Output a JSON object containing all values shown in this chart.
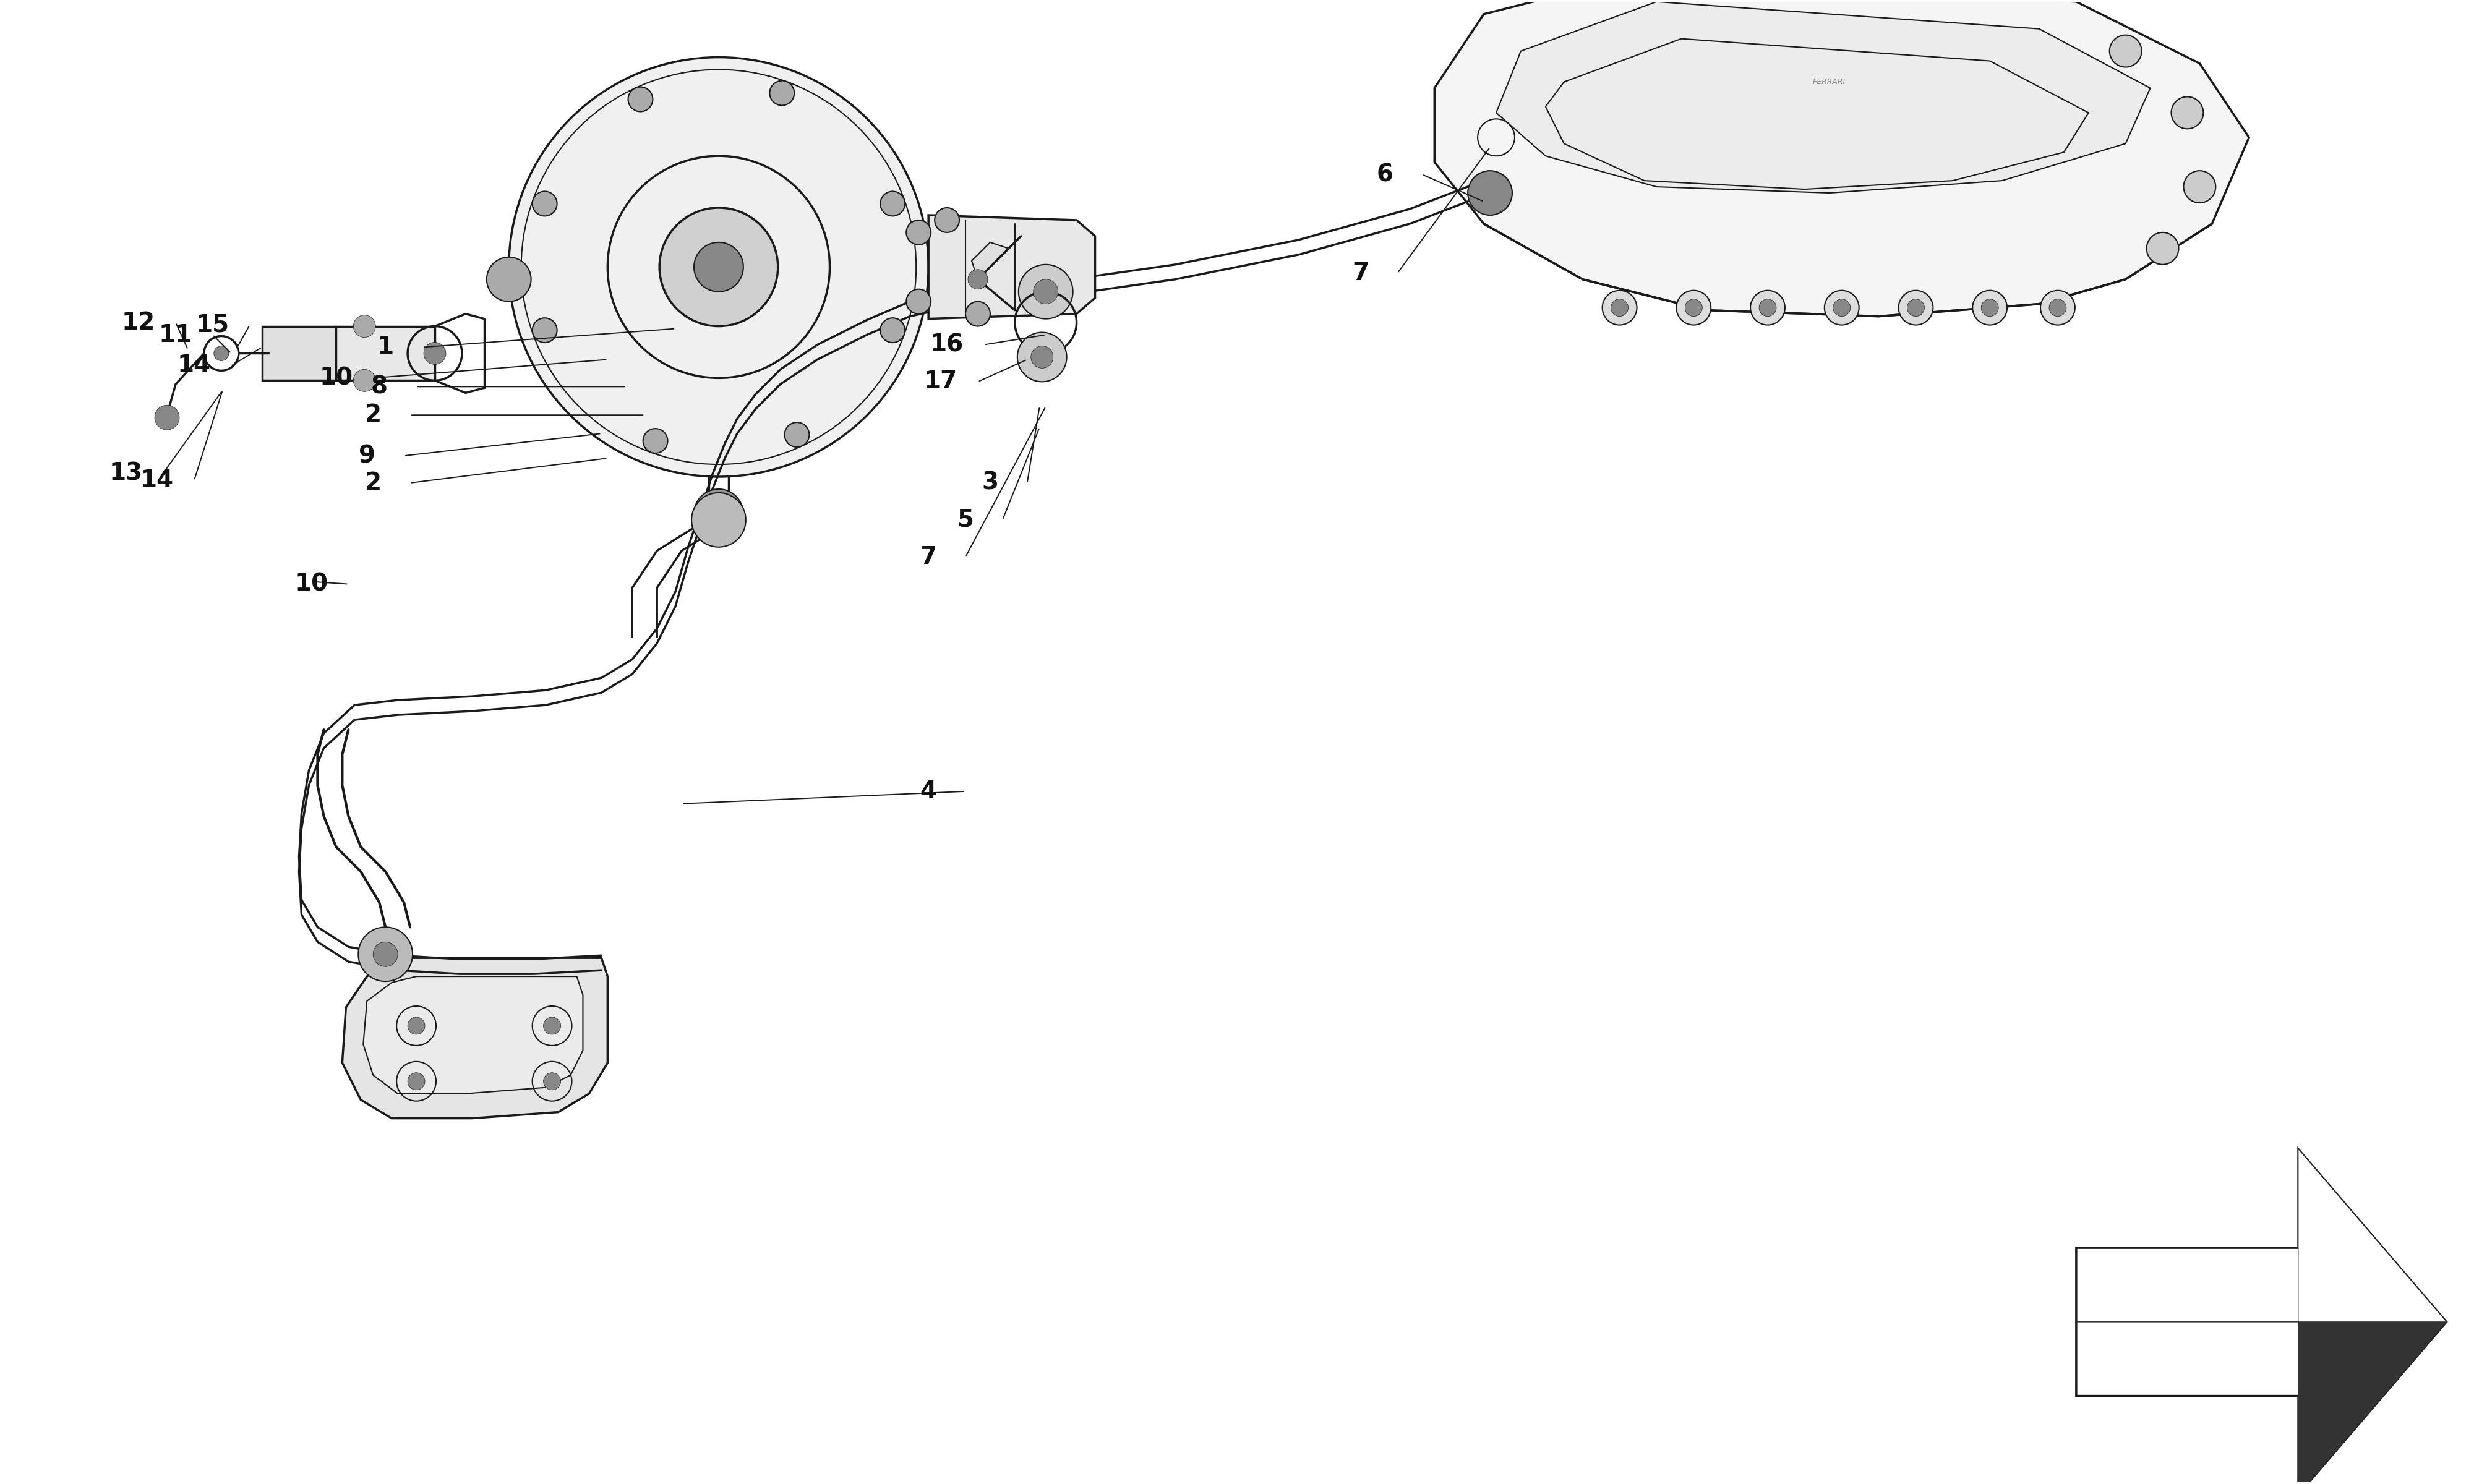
{
  "bg_color": "#ffffff",
  "line_color": "#1a1a1a",
  "line_width": 2.5,
  "fig_width": 40,
  "fig_height": 24,
  "leader_data": [
    [
      "1",
      3.1,
      9.2,
      5.45,
      9.35
    ],
    [
      "2",
      3.0,
      8.65,
      5.2,
      8.65
    ],
    [
      "2",
      3.0,
      8.1,
      4.9,
      8.3
    ],
    [
      "3",
      8.0,
      8.1,
      8.4,
      8.72
    ],
    [
      "4",
      7.5,
      5.6,
      5.5,
      5.5
    ],
    [
      "5",
      7.8,
      7.8,
      8.4,
      8.55
    ],
    [
      "6",
      11.2,
      10.6,
      12.0,
      10.38
    ],
    [
      "7",
      11.0,
      9.8,
      12.05,
      10.82
    ],
    [
      "7",
      7.5,
      7.5,
      8.45,
      8.72
    ],
    [
      "8",
      3.05,
      8.88,
      5.05,
      8.88
    ],
    [
      "9",
      2.95,
      8.32,
      4.85,
      8.5
    ],
    [
      "10",
      2.7,
      8.95,
      4.9,
      9.1
    ],
    [
      "10",
      2.5,
      7.28,
      2.5,
      7.3
    ],
    [
      "11",
      1.4,
      9.3,
      1.85,
      9.15
    ],
    [
      "12",
      1.1,
      9.4,
      1.5,
      9.18
    ],
    [
      "13",
      1.0,
      8.18,
      1.78,
      8.85
    ],
    [
      "14",
      1.25,
      8.12,
      1.78,
      8.85
    ],
    [
      "14",
      1.55,
      9.05,
      2.1,
      9.2
    ],
    [
      "15",
      1.7,
      9.38,
      1.9,
      9.2
    ],
    [
      "16",
      7.65,
      9.22,
      8.45,
      9.3
    ],
    [
      "17",
      7.6,
      8.92,
      8.3,
      9.1
    ]
  ]
}
